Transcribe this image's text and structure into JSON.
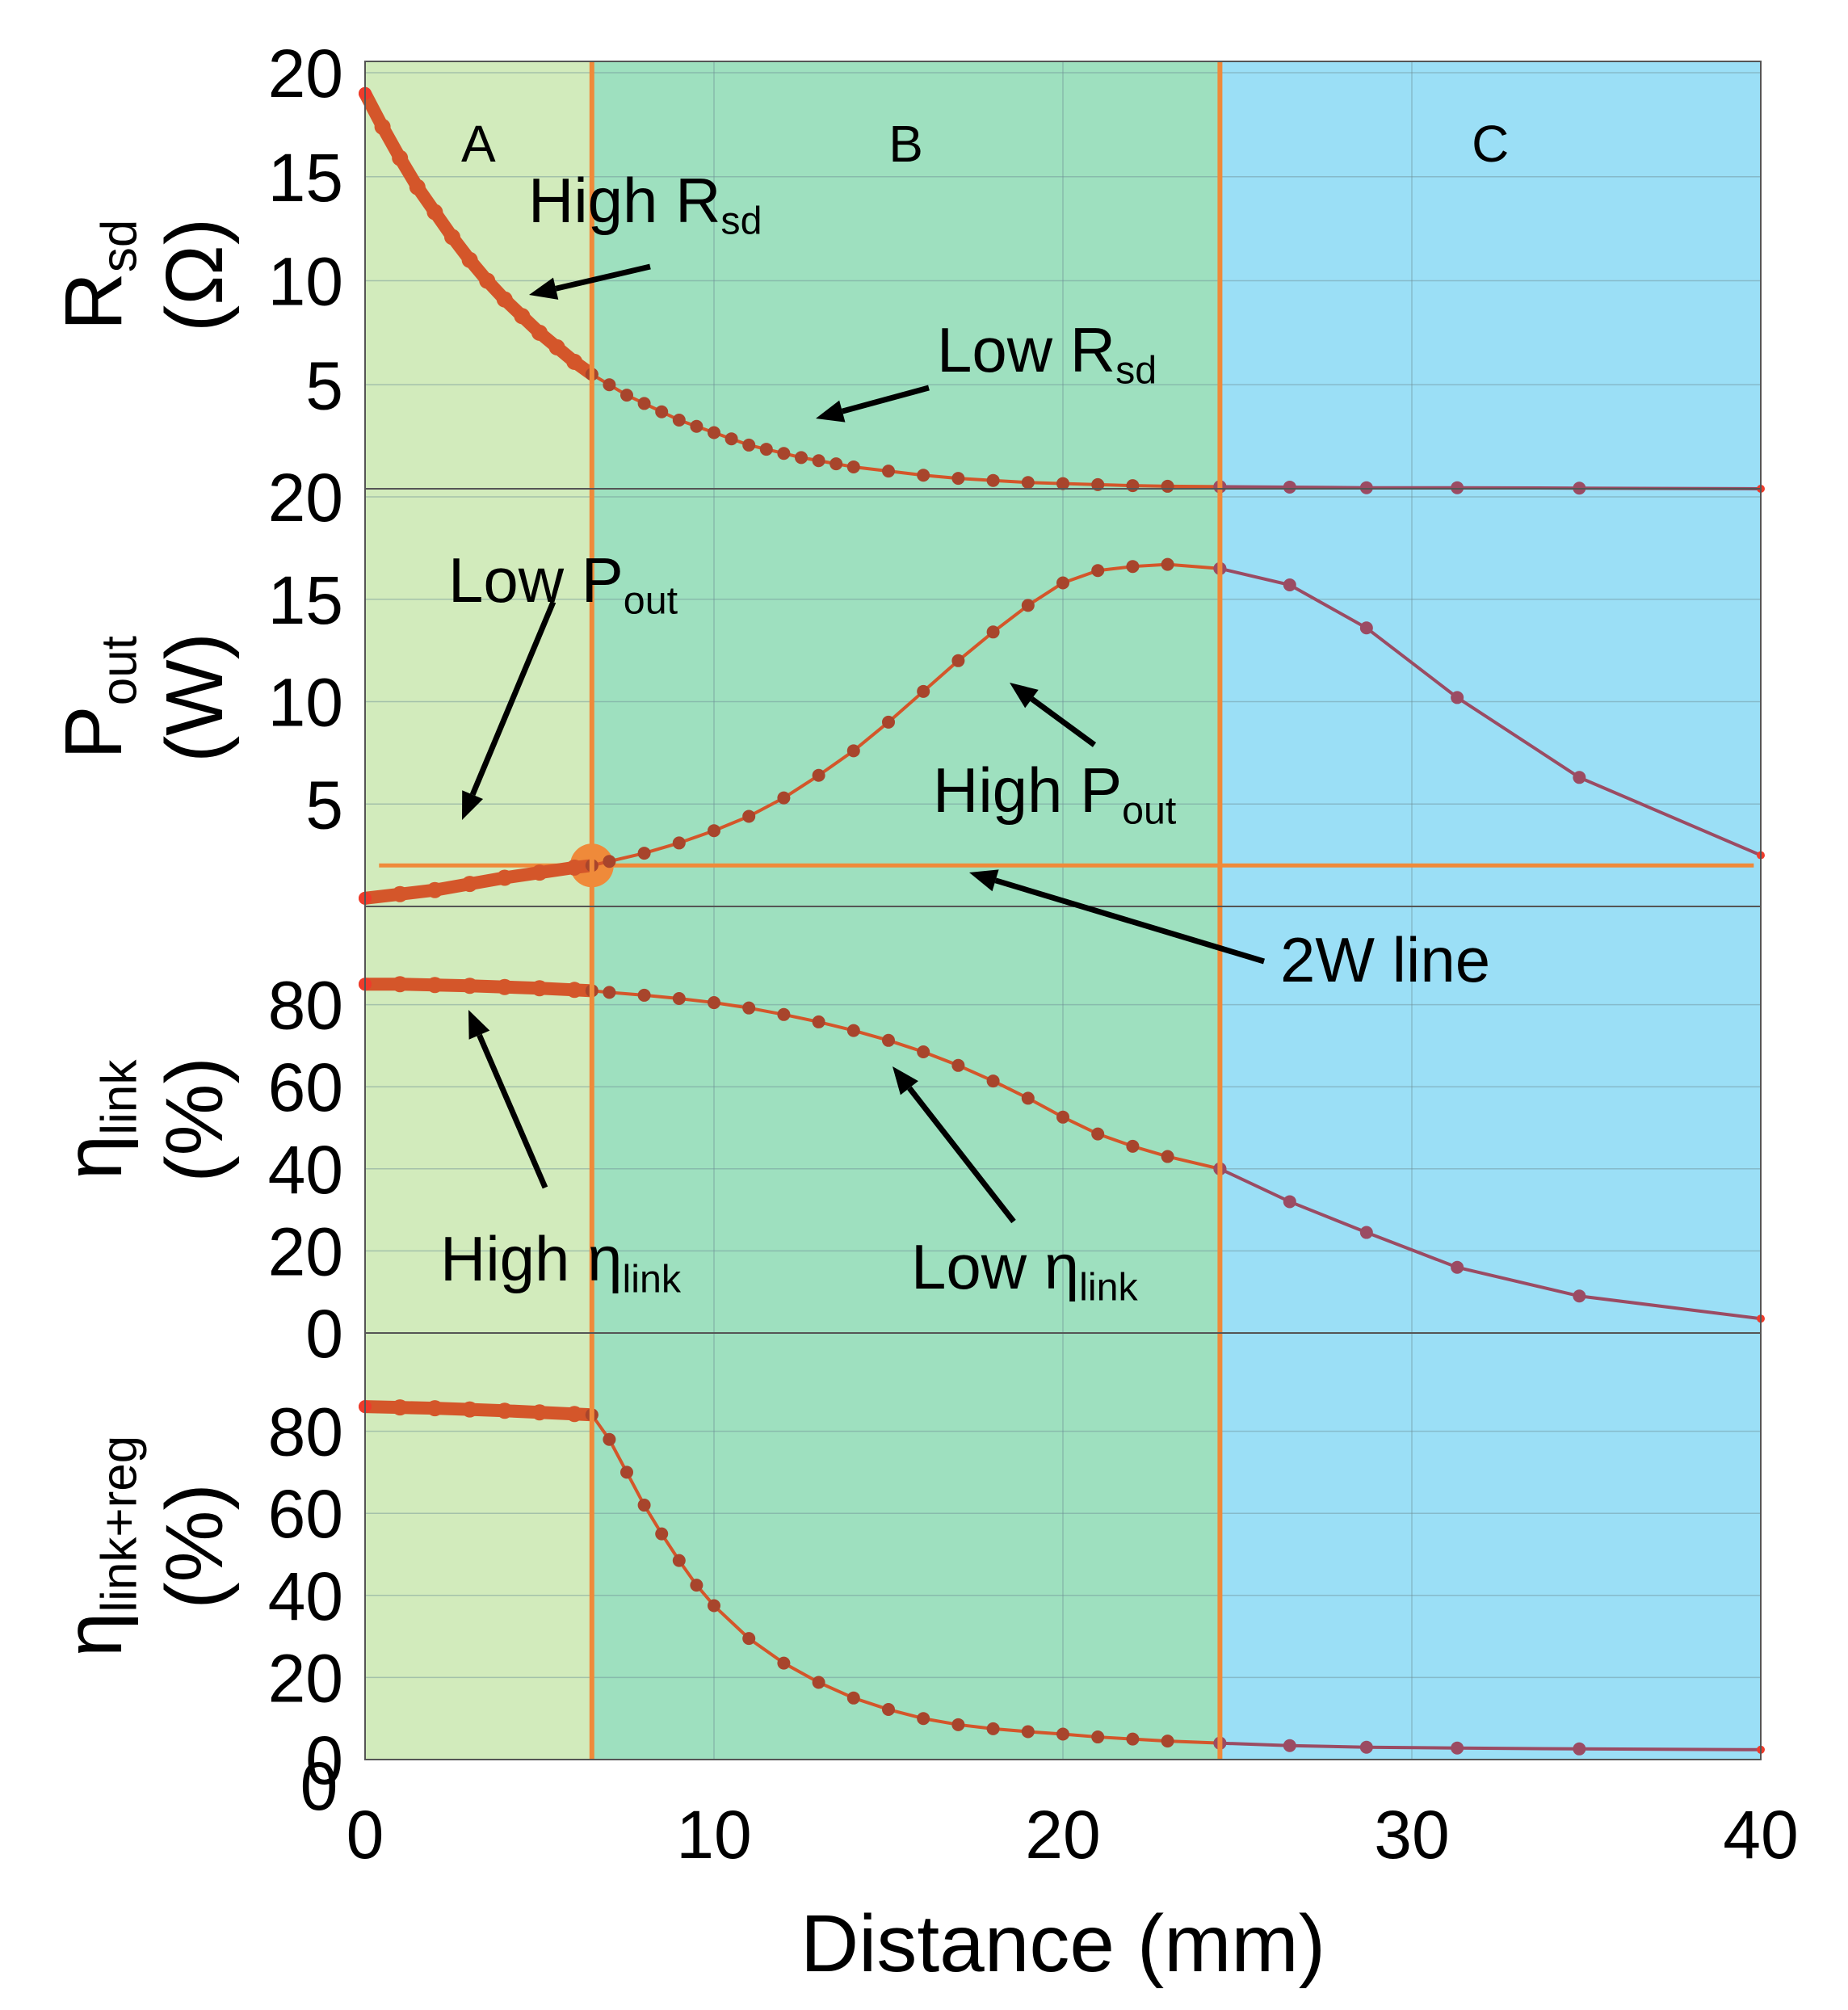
{
  "chart_data": {
    "type": "line",
    "xlabel": "Distance (mm)",
    "xlim": [
      0,
      40
    ],
    "xticks": [
      0,
      10,
      20,
      30,
      40
    ],
    "x_origin_label": "0",
    "colors": {
      "region_A": "#d2ebbc",
      "region_B": "#9ee0bf",
      "region_C": "#9bdff6",
      "boundary": "#ef8a3a",
      "thick_series": "#d4562a",
      "dot": "#a8452c",
      "thin_series": "#9b4b63",
      "end_dot": "#ee3b2b",
      "grid": "#6c8f95",
      "text": "#000000"
    },
    "regions": [
      {
        "label": "A",
        "x_start": 0,
        "x_end": 6.5
      },
      {
        "label": "B",
        "x_start": 6.5,
        "x_end": 24.5
      },
      {
        "label": "C",
        "x_start": 24.5,
        "x_end": 40
      }
    ],
    "panels": [
      {
        "id": "rsd",
        "ylabel": "R",
        "ylabel_sub": "sd",
        "yunit": "(Ω)",
        "ylim": [
          0,
          20
        ],
        "yticks": [
          5,
          10,
          15,
          20
        ],
        "ytick_labels": [
          "5",
          "10",
          "15",
          "20"
        ],
        "series": {
          "dense": {
            "x": [
              0,
              0.5,
              1,
              1.5,
              2,
              2.5,
              3,
              3.5,
              4,
              4.5,
              5,
              5.5,
              6,
              6.5,
              7,
              7.5,
              8,
              8.5,
              9,
              9.5,
              10,
              10.5,
              11,
              11.5,
              12,
              12.5,
              13,
              13.5,
              14,
              15,
              16,
              17,
              18,
              19,
              20,
              21,
              22,
              23,
              24.5
            ],
            "y": [
              19,
              17.4,
              15.9,
              14.5,
              13.3,
              12.1,
              11.0,
              10.0,
              9.1,
              8.3,
              7.5,
              6.8,
              6.1,
              5.5,
              5.0,
              4.5,
              4.1,
              3.7,
              3.3,
              3.0,
              2.7,
              2.4,
              2.1,
              1.9,
              1.7,
              1.5,
              1.35,
              1.2,
              1.05,
              0.85,
              0.65,
              0.5,
              0.4,
              0.3,
              0.25,
              0.2,
              0.15,
              0.12,
              0.1
            ]
          },
          "sparse": {
            "x": [
              24.5,
              26.5,
              28.7,
              31.3,
              34.8,
              40
            ],
            "y": [
              0.1,
              0.08,
              0.05,
              0.05,
              0.03,
              0.0
            ]
          }
        },
        "annotations": [
          {
            "text": "High R",
            "sub": "sd"
          },
          {
            "text": "Low R",
            "sub": "sd"
          }
        ]
      },
      {
        "id": "pout",
        "ylabel": "P",
        "ylabel_sub": "out",
        "yunit": "(W)",
        "ylim": [
          0,
          20
        ],
        "yticks": [
          5,
          10,
          15,
          20
        ],
        "ytick_labels": [
          "5",
          "10",
          "15",
          "20"
        ],
        "reference_line": {
          "y": 2,
          "label": "2W line",
          "marker_x": 6.5
        },
        "series": {
          "dense": {
            "x": [
              0,
              1,
              2,
              3,
              4,
              5,
              6,
              6.5,
              7,
              8,
              9,
              10,
              11,
              12,
              13,
              14,
              15,
              16,
              17,
              18,
              19,
              20,
              21,
              22,
              23,
              24.5
            ],
            "y": [
              0.4,
              0.6,
              0.8,
              1.1,
              1.4,
              1.65,
              1.9,
              2.0,
              2.2,
              2.6,
              3.1,
              3.7,
              4.4,
              5.3,
              6.4,
              7.6,
              9.0,
              10.5,
              12.0,
              13.4,
              14.7,
              15.8,
              16.4,
              16.6,
              16.7,
              16.5
            ]
          },
          "sparse": {
            "x": [
              24.5,
              26.5,
              28.7,
              31.3,
              34.8,
              40
            ],
            "y": [
              16.5,
              15.7,
              13.6,
              10.2,
              6.3,
              2.5
            ]
          }
        },
        "annotations": [
          {
            "text": "Low P",
            "sub": "out"
          },
          {
            "text": "High P",
            "sub": "out"
          },
          {
            "text": "2W line",
            "sub": ""
          }
        ]
      },
      {
        "id": "eta_link",
        "ylabel": "η",
        "ylabel_sub": "link",
        "yunit": "(%)",
        "ylim": [
          0,
          100
        ],
        "yticks": [
          0,
          20,
          40,
          60,
          80
        ],
        "ytick_labels": [
          "0",
          "20",
          "40",
          "60",
          "80"
        ],
        "series": {
          "dense": {
            "x": [
              0,
              1,
              2,
              3,
              4,
              5,
              6,
              6.5,
              7,
              8,
              9,
              10,
              11,
              12,
              13,
              14,
              15,
              16,
              17,
              18,
              19,
              20,
              21,
              22,
              23,
              24.5
            ],
            "y": [
              85,
              85,
              84.8,
              84.6,
              84.3,
              84,
              83.6,
              83.4,
              83,
              82.3,
              81.5,
              80.5,
              79.2,
              77.6,
              75.8,
              73.7,
              71.3,
              68.5,
              65.2,
              61.4,
              57.2,
              52.6,
              48.5,
              45.5,
              43.0,
              40
            ]
          },
          "sparse": {
            "x": [
              24.5,
              26.5,
              28.7,
              31.3,
              34.8,
              40
            ],
            "y": [
              40,
              32,
              24.5,
              16,
              9,
              3.5
            ]
          }
        },
        "annotations": [
          {
            "text": "High η",
            "sub": "link"
          },
          {
            "text": "Low η",
            "sub": "link"
          }
        ]
      },
      {
        "id": "eta_link_reg",
        "ylabel": "η",
        "ylabel_sub": "link+reg",
        "yunit": "(%)",
        "ylim": [
          0,
          100
        ],
        "yticks": [
          0,
          20,
          40,
          60,
          80
        ],
        "ytick_labels": [
          "0",
          "20",
          "40",
          "60",
          "80"
        ],
        "series": {
          "dense": {
            "x": [
              0,
              1,
              2,
              3,
              4,
              5,
              6,
              6.5,
              7,
              7.5,
              8,
              8.5,
              9,
              9.5,
              10,
              11,
              12,
              13,
              14,
              15,
              16,
              17,
              18,
              19,
              20,
              21,
              22,
              23,
              24.5
            ],
            "y": [
              86,
              85.8,
              85.6,
              85.3,
              85.0,
              84.6,
              84.2,
              84,
              78,
              70,
              62,
              55,
              48.5,
              42.5,
              37.5,
              29.5,
              23.5,
              18.8,
              15,
              12.2,
              10,
              8.5,
              7.5,
              6.8,
              6.2,
              5.5,
              5.0,
              4.5,
              4.0
            ]
          },
          "sparse": {
            "x": [
              24.5,
              26.5,
              28.7,
              31.3,
              34.8,
              40
            ],
            "y": [
              4.0,
              3.4,
              3.0,
              2.8,
              2.6,
              2.4
            ]
          }
        },
        "annotations": []
      }
    ]
  }
}
